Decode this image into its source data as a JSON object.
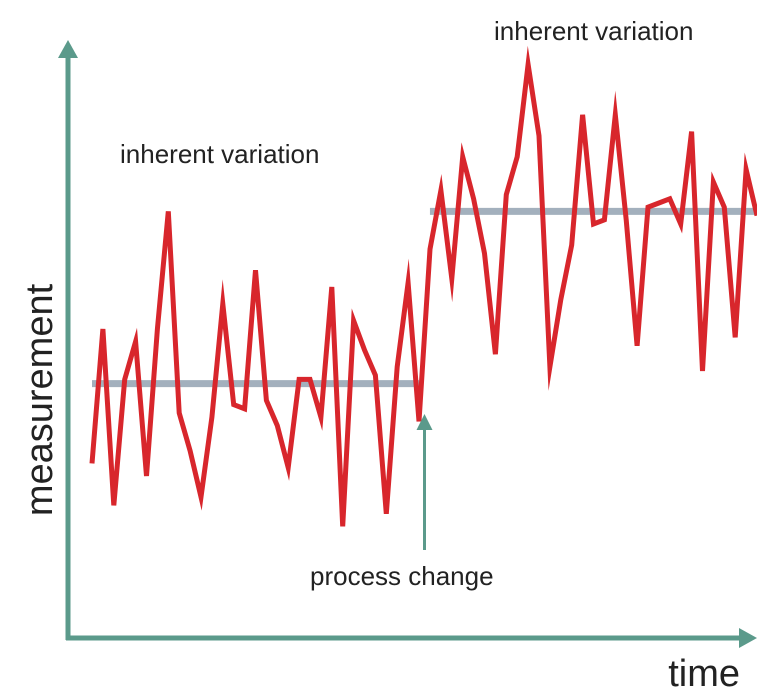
{
  "chart_data": {
    "type": "line",
    "xlabel": "time",
    "ylabel": "measurement",
    "grid": false,
    "colors": {
      "axis": "#5b9a8b",
      "series": "#d8262c",
      "mean": "#a3b0bd"
    },
    "annotations": {
      "variation_left": "inherent variation",
      "variation_right": "inherent variation",
      "change": "process change"
    },
    "series": [
      {
        "values": [
          2.3,
          5.5,
          1.3,
          4.3,
          5.2,
          2.0,
          5.5,
          8.3,
          3.5,
          2.6,
          1.5,
          3.4,
          6.1,
          3.7,
          3.6,
          6.9,
          3.8,
          3.2,
          2.2,
          4.3,
          4.3,
          3.4,
          6.5,
          0.8,
          5.7,
          5.0,
          4.4,
          1.1,
          4.6,
          6.6,
          3.3,
          7.4,
          8.8,
          6.7,
          9.6,
          8.6,
          7.3,
          4.9,
          8.7,
          9.6,
          11.8,
          10.1,
          4.6,
          6.2,
          7.5,
          10.6,
          8.0,
          8.1,
          10.6,
          8.1,
          5.1,
          8.4,
          8.5,
          8.6,
          8.0,
          10.2,
          4.5,
          9.0,
          8.4,
          5.3,
          9.3,
          8.2
        ]
      }
    ],
    "means": [
      {
        "start": 0,
        "end": 30,
        "value": 4.2
      },
      {
        "start": 31,
        "end": 61,
        "value": 8.3
      }
    ],
    "change_index": 30.5
  }
}
